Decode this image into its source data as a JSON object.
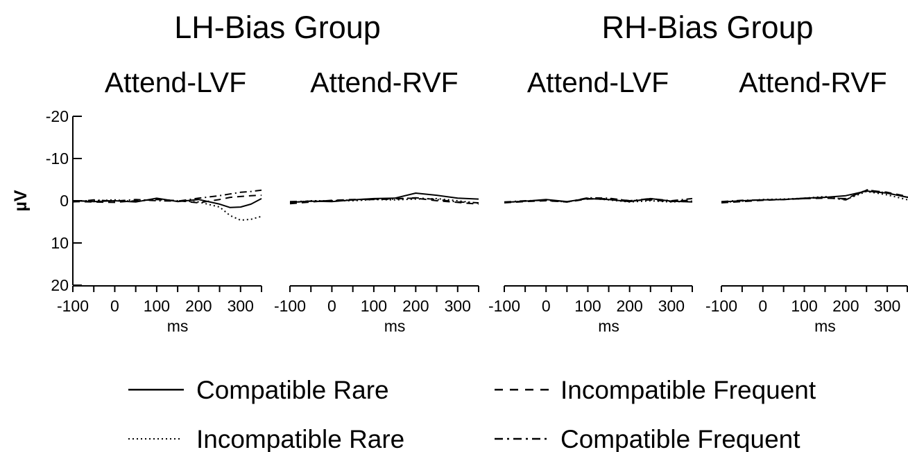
{
  "chart_data": {
    "type": "line",
    "group_titles": [
      "LH-Bias Group",
      "RH-Bias Group"
    ],
    "y_axis": {
      "label": "µV",
      "ticks": [
        "-20",
        "-10",
        "0",
        "10",
        "20"
      ],
      "ylim": [
        -20,
        20
      ],
      "inverted": true
    },
    "x_axis": {
      "label": "ms",
      "ticks": [
        "-100",
        "0",
        "100",
        "200",
        "300"
      ],
      "xlim": [
        -100,
        350
      ]
    },
    "legend": {
      "placement": "bottom",
      "items": [
        {
          "name": "Compatible Rare",
          "style": "solid"
        },
        {
          "name": "Incompatible Frequent",
          "style": "dashed"
        },
        {
          "name": "Incompatible Rare",
          "style": "dotted"
        },
        {
          "name": "Compatible Frequent",
          "style": "dashdot"
        }
      ]
    },
    "panels": [
      {
        "title": "Attend-LVF",
        "group": "LH-Bias Group",
        "series": [
          {
            "name": "Compatible Rare",
            "x": [
              -100,
              -50,
              0,
              50,
              100,
              150,
              200,
              250,
              275,
              300,
              325,
              350
            ],
            "y": [
              0,
              0.2,
              0,
              0.3,
              -0.6,
              0.2,
              -0.3,
              0.8,
              1.6,
              1.5,
              0.8,
              -0.5
            ]
          },
          {
            "name": "Incompatible Frequent",
            "x": [
              -100,
              -50,
              0,
              50,
              100,
              150,
              200,
              250,
              275,
              300,
              325,
              350
            ],
            "y": [
              0.2,
              0.3,
              0.4,
              0,
              -0.3,
              0,
              0.5,
              -0.3,
              -0.8,
              -1,
              -1.2,
              -1.3
            ]
          },
          {
            "name": "Incompatible Rare",
            "x": [
              -100,
              -50,
              0,
              50,
              100,
              150,
              200,
              250,
              275,
              300,
              325,
              350
            ],
            "y": [
              0,
              0,
              -0.2,
              0.2,
              -0.4,
              0,
              0.3,
              1.5,
              3.5,
              4.6,
              4.4,
              3.7
            ]
          },
          {
            "name": "Compatible Frequent",
            "x": [
              -100,
              -50,
              0,
              50,
              100,
              150,
              200,
              250,
              275,
              300,
              325,
              350
            ],
            "y": [
              0.3,
              -0.2,
              0.1,
              -0.3,
              0,
              0.1,
              -0.6,
              -1.2,
              -1.6,
              -2,
              -2.2,
              -2.5
            ]
          }
        ]
      },
      {
        "title": "Attend-RVF",
        "group": "LH-Bias Group",
        "series": [
          {
            "name": "Compatible Rare",
            "x": [
              -100,
              -50,
              0,
              50,
              100,
              150,
              200,
              250,
              300,
              350
            ],
            "y": [
              0.4,
              0.1,
              0.2,
              -0.2,
              -0.5,
              -0.6,
              -1.8,
              -1.3,
              -0.6,
              -0.4
            ]
          },
          {
            "name": "Incompatible Frequent",
            "x": [
              -100,
              -50,
              0,
              50,
              100,
              150,
              200,
              250,
              300,
              350
            ],
            "y": [
              0.7,
              0.3,
              -0.1,
              -0.3,
              -0.4,
              -0.5,
              -0.6,
              0,
              0.4,
              0.8
            ]
          },
          {
            "name": "Incompatible Rare",
            "x": [
              -100,
              -50,
              0,
              50,
              100,
              150,
              200,
              250,
              300,
              350
            ],
            "y": [
              0.5,
              0,
              0,
              0,
              -0.3,
              -0.2,
              -0.4,
              -0.5,
              0,
              0.6
            ]
          },
          {
            "name": "Compatible Frequent",
            "x": [
              -100,
              -50,
              0,
              50,
              100,
              150,
              200,
              250,
              300,
              350
            ],
            "y": [
              0.2,
              0.1,
              0,
              -0.2,
              -0.3,
              -0.4,
              -0.7,
              -0.3,
              0.3,
              0.5
            ]
          }
        ]
      },
      {
        "title": "Attend-LVF",
        "group": "RH-Bias Group",
        "series": [
          {
            "name": "Compatible Rare",
            "x": [
              -100,
              -50,
              0,
              50,
              100,
              150,
              200,
              250,
              300,
              350
            ],
            "y": [
              0.4,
              0.1,
              -0.3,
              0.2,
              -0.5,
              -0.3,
              0.2,
              -0.5,
              0.1,
              0.3
            ]
          },
          {
            "name": "Incompatible Frequent",
            "x": [
              -100,
              -50,
              0,
              50,
              100,
              150,
              200,
              250,
              300,
              350
            ],
            "y": [
              0.5,
              0.2,
              0,
              0.3,
              -0.4,
              -0.5,
              0,
              -0.2,
              0.2,
              -0.2
            ]
          },
          {
            "name": "Incompatible Rare",
            "x": [
              -100,
              -50,
              0,
              50,
              100,
              150,
              200,
              250,
              300,
              350
            ],
            "y": [
              0.4,
              0.1,
              -0.2,
              0.3,
              -0.6,
              -0.2,
              0.3,
              0,
              0.3,
              0.1
            ]
          },
          {
            "name": "Compatible Frequent",
            "x": [
              -100,
              -50,
              0,
              50,
              100,
              150,
              200,
              250,
              300,
              350
            ],
            "y": [
              0.3,
              0,
              -0.1,
              0.3,
              -0.7,
              -0.6,
              0,
              -0.5,
              0,
              -0.5
            ]
          }
        ]
      },
      {
        "title": "Attend-RVF",
        "group": "RH-Bias Group",
        "series": [
          {
            "name": "Compatible Rare",
            "x": [
              -100,
              -50,
              0,
              50,
              100,
              150,
              200,
              250,
              300,
              350
            ],
            "y": [
              0.3,
              0,
              -0.2,
              -0.3,
              -0.6,
              -0.8,
              -1.2,
              -2.3,
              -1.8,
              -0.8
            ]
          },
          {
            "name": "Incompatible Frequent",
            "x": [
              -100,
              -50,
              0,
              50,
              100,
              150,
              200,
              250,
              300,
              350
            ],
            "y": [
              0.5,
              0.2,
              -0.1,
              -0.3,
              -0.5,
              -0.6,
              -0.5,
              -2.5,
              -2,
              -1
            ]
          },
          {
            "name": "Incompatible Rare",
            "x": [
              -100,
              -50,
              0,
              50,
              100,
              150,
              200,
              250,
              300,
              350
            ],
            "y": [
              0.4,
              0.1,
              -0.3,
              -0.4,
              -0.6,
              -1,
              -0.3,
              -2.2,
              -1.4,
              -0.2
            ]
          },
          {
            "name": "Compatible Frequent",
            "x": [
              -100,
              -50,
              0,
              50,
              100,
              150,
              200,
              250,
              300,
              350
            ],
            "y": [
              0.2,
              -0.1,
              -0.2,
              -0.3,
              -0.5,
              -0.8,
              -0.2,
              -2.6,
              -1.8,
              -0.8
            ]
          }
        ]
      }
    ]
  }
}
